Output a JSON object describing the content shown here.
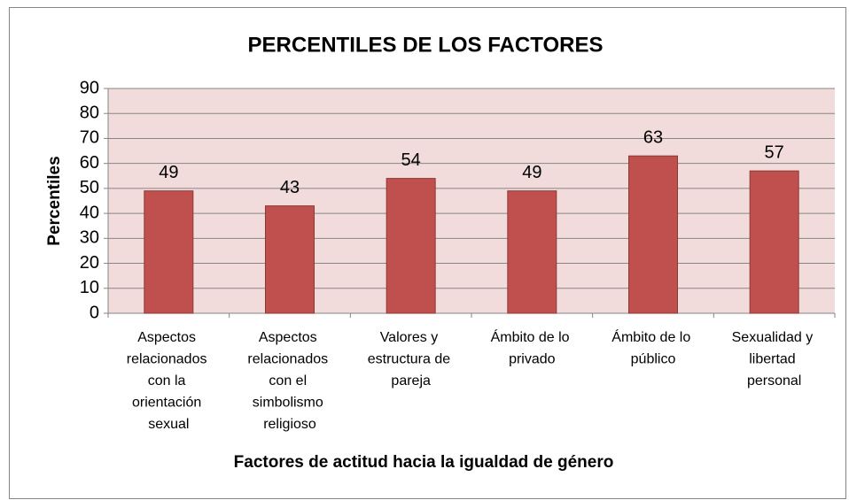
{
  "chart_data": {
    "type": "bar",
    "title": "PERCENTILES DE LOS FACTORES",
    "x_label": "Factores de actitud hacia la  igualdad de género",
    "y_label": "Percentiles",
    "categories": [
      "Aspectos relacionados con la orientación sexual",
      "Aspectos relacionados con el simbolismo religioso",
      "Valores y estructura de pareja",
      "Ámbito de lo privado",
      "Ámbito de lo público",
      "Sexualidad y libertad personal"
    ],
    "values": [
      49,
      43,
      54,
      49,
      63,
      57
    ],
    "color": "#c0504d",
    "ylim": [
      0,
      90
    ],
    "yticks": [
      0,
      10,
      20,
      30,
      40,
      50,
      60,
      70,
      80,
      90
    ],
    "grid": true
  }
}
